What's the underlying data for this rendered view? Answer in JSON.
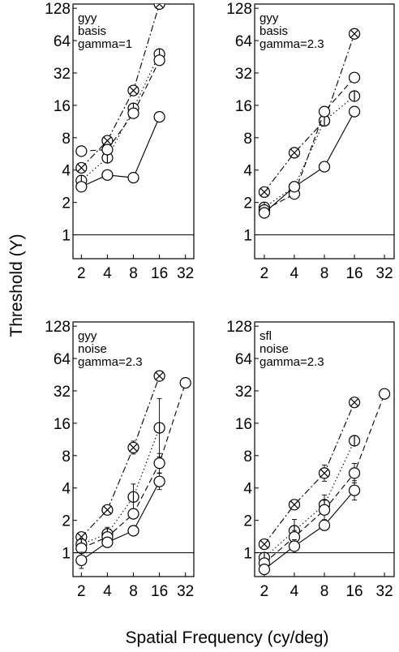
{
  "chart_data": [
    {
      "type": "line",
      "annotation": [
        "gyy",
        "basis",
        "gamma=1"
      ],
      "x_scale": "log2",
      "y_scale": "log2",
      "xlim": [
        1.6,
        40
      ],
      "ylim": [
        0.6,
        140
      ],
      "x_ticks": [
        2,
        4,
        8,
        16,
        32
      ],
      "y_ticks": [
        1,
        2,
        4,
        8,
        16,
        32,
        64,
        128
      ],
      "reference_line_y": 1,
      "series": [
        {
          "marker": "circle-x",
          "line": "dash-dot",
          "x": [
            2,
            4,
            8,
            16
          ],
          "y": [
            4.2,
            7.5,
            22,
            140
          ],
          "err": [
            0,
            0,
            0,
            0
          ]
        },
        {
          "marker": "circle-bar",
          "line": "dotted",
          "x": [
            2,
            4,
            8,
            16
          ],
          "y": [
            3.2,
            5.2,
            15,
            48
          ],
          "err": [
            0,
            0,
            0,
            0
          ]
        },
        {
          "marker": "circle",
          "line": "dashed",
          "x": [
            2,
            4,
            8,
            16
          ],
          "y": [
            6,
            6.2,
            13.5,
            42
          ],
          "err": [
            0,
            0,
            0,
            0
          ]
        },
        {
          "marker": "circle",
          "line": "solid",
          "x": [
            2,
            4,
            8,
            16
          ],
          "y": [
            2.8,
            3.6,
            3.4,
            12.5
          ],
          "err": [
            0,
            0,
            0,
            0
          ]
        }
      ]
    },
    {
      "type": "line",
      "annotation": [
        "gyy",
        "basis",
        "gamma=2.3"
      ],
      "x_scale": "log2",
      "y_scale": "log2",
      "xlim": [
        1.6,
        40
      ],
      "ylim": [
        0.6,
        140
      ],
      "x_ticks": [
        2,
        4,
        8,
        16,
        32
      ],
      "y_ticks": [
        1,
        2,
        4,
        8,
        16,
        32,
        64,
        128
      ],
      "reference_line_y": 1,
      "series": [
        {
          "marker": "circle-x",
          "line": "dash-dot",
          "x": [
            2,
            4,
            8,
            16
          ],
          "y": [
            2.5,
            5.8,
            11.5,
            74
          ],
          "err": [
            0,
            0,
            0,
            0
          ]
        },
        {
          "marker": "circle-bar",
          "line": "dotted",
          "x": [
            2,
            4,
            8,
            16
          ],
          "y": [
            1.8,
            2.8,
            11.5,
            19.5
          ],
          "err": [
            0,
            0,
            0,
            0
          ]
        },
        {
          "marker": "circle",
          "line": "dashed",
          "x": [
            2,
            4,
            8,
            16
          ],
          "y": [
            1.7,
            2.4,
            14,
            29
          ],
          "err": [
            0,
            0,
            0,
            0
          ]
        },
        {
          "marker": "circle",
          "line": "solid",
          "x": [
            2,
            4,
            8,
            16
          ],
          "y": [
            1.6,
            2.8,
            4.3,
            14
          ],
          "err": [
            0,
            0,
            0,
            0
          ]
        }
      ]
    },
    {
      "type": "line",
      "annotation": [
        "gyy",
        "noise",
        "gamma=2.3"
      ],
      "x_scale": "log2",
      "y_scale": "log2",
      "xlim": [
        1.6,
        40
      ],
      "ylim": [
        0.6,
        140
      ],
      "x_ticks": [
        2,
        4,
        8,
        16,
        32
      ],
      "y_ticks": [
        1,
        2,
        4,
        8,
        16,
        32,
        64,
        128
      ],
      "reference_line_y": 1,
      "series": [
        {
          "marker": "circle-x",
          "line": "dash-dot",
          "x": [
            2,
            4,
            8,
            16
          ],
          "y": [
            1.4,
            2.5,
            9.5,
            44
          ],
          "err": [
            0,
            0,
            0.2,
            0
          ]
        },
        {
          "marker": "circle-bar",
          "line": "dotted",
          "x": [
            2,
            4,
            8,
            16
          ],
          "y": [
            1.2,
            1.5,
            3.3,
            14.5
          ],
          "err": [
            0,
            0.2,
            0.4,
            0.9
          ]
        },
        {
          "marker": "circle",
          "line": "dashed",
          "x": [
            2,
            4,
            8,
            16,
            32
          ],
          "y": [
            1.1,
            1.4,
            2.3,
            6.8,
            38
          ],
          "err": [
            0,
            0,
            0,
            0.3,
            0
          ]
        },
        {
          "marker": "circle",
          "line": "solid",
          "x": [
            2,
            4,
            8,
            16
          ],
          "y": [
            0.85,
            1.25,
            1.6,
            4.6
          ],
          "err": [
            0.25,
            0.1,
            0.1,
            0.25
          ]
        }
      ]
    },
    {
      "type": "line",
      "annotation": [
        "sfl",
        "noise",
        "gamma=2.3"
      ],
      "x_scale": "log2",
      "y_scale": "log2",
      "xlim": [
        1.6,
        40
      ],
      "ylim": [
        0.6,
        140
      ],
      "x_ticks": [
        2,
        4,
        8,
        16,
        32
      ],
      "y_ticks": [
        1,
        2,
        4,
        8,
        16,
        32,
        64,
        128
      ],
      "reference_line_y": 1,
      "series": [
        {
          "marker": "circle-x",
          "line": "dash-dot",
          "x": [
            2,
            4,
            8,
            16
          ],
          "y": [
            1.2,
            2.8,
            5.5,
            25
          ],
          "err": [
            0,
            0.15,
            0.25,
            0
          ]
        },
        {
          "marker": "circle-bar",
          "line": "dotted",
          "x": [
            2,
            4,
            8,
            16
          ],
          "y": [
            0.9,
            1.6,
            2.8,
            11
          ],
          "err": [
            0,
            0.35,
            0.3,
            0
          ]
        },
        {
          "marker": "circle",
          "line": "dashed",
          "x": [
            2,
            4,
            8,
            16,
            32
          ],
          "y": [
            0.8,
            1.4,
            2.5,
            5.5,
            30
          ],
          "err": [
            0,
            0.2,
            0.3,
            0.3,
            0
          ]
        },
        {
          "marker": "circle",
          "line": "solid",
          "x": [
            2,
            4,
            8,
            16
          ],
          "y": [
            0.7,
            1.15,
            1.8,
            3.8
          ],
          "err": [
            0.1,
            0.2,
            0.15,
            0.3
          ]
        }
      ]
    }
  ],
  "ylabel": "Threshold (Y)",
  "xlabel": "Spatial Frequency  (cy/deg)",
  "colors": {
    "ink": "#000000",
    "background": "#ffffff"
  }
}
